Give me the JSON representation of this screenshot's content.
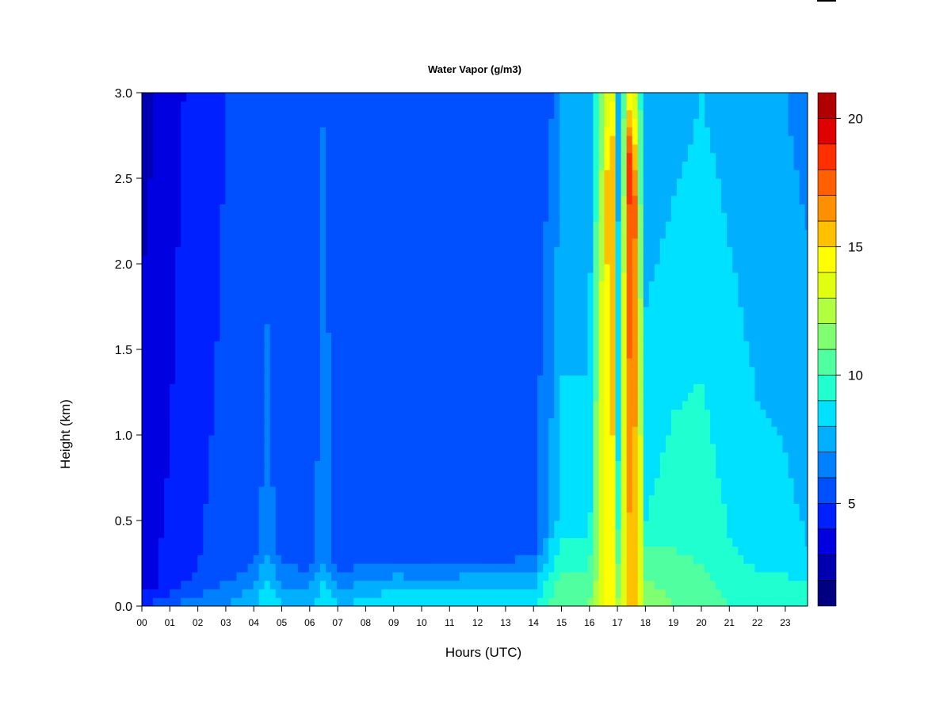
{
  "chart_data": {
    "type": "heatmap",
    "title": "Water Vapor (g/m3)",
    "xlabel": "Hours (UTC)",
    "ylabel": "Height (km)",
    "xlim": [
      0,
      23.9
    ],
    "ylim": [
      0.0,
      3.0
    ],
    "x_ticks": [
      "00",
      "01",
      "02",
      "03",
      "04",
      "05",
      "06",
      "07",
      "08",
      "09",
      "10",
      "11",
      "12",
      "13",
      "14",
      "15",
      "16",
      "17",
      "18",
      "19",
      "20",
      "21",
      "22",
      "23"
    ],
    "y_ticks": [
      "0.0",
      "0.5",
      "1.0",
      "1.5",
      "2.0",
      "2.5",
      "3.0"
    ],
    "colorbar": {
      "range": [
        1,
        21
      ],
      "levels": [
        1,
        2,
        3,
        4,
        5,
        6,
        7,
        8,
        9,
        10,
        11,
        12,
        13,
        14,
        15,
        16,
        17,
        18,
        19,
        20,
        21
      ],
      "colors": [
        "#000080",
        "#0000B0",
        "#0000E0",
        "#0020FF",
        "#0050FF",
        "#0080FF",
        "#00B0FF",
        "#00E0FF",
        "#20FFD0",
        "#50FFA0",
        "#80FF70",
        "#B0FF40",
        "#E0FF10",
        "#FFFF00",
        "#FFC000",
        "#FF9000",
        "#FF6000",
        "#FF3000",
        "#E00000",
        "#B00000",
        "#800000"
      ],
      "ticks": [
        "5",
        "10",
        "15",
        "20"
      ],
      "tick_values": [
        5,
        10,
        15,
        20
      ]
    },
    "surface_profile": {
      "hours": [
        0,
        1,
        2,
        3,
        4,
        4.5,
        5,
        6,
        6.5,
        7,
        8,
        9,
        10,
        12,
        14,
        14.7,
        15,
        16,
        16.8,
        17,
        17.5,
        18,
        19,
        20,
        21,
        22,
        23,
        23.9
      ],
      "surface_value": [
        5,
        6,
        6.5,
        7,
        8,
        9,
        8,
        8,
        9,
        8,
        8.5,
        9,
        9,
        9,
        9,
        10.5,
        11,
        11,
        15,
        12,
        16,
        12,
        11,
        10.5,
        10,
        10,
        10,
        10
      ],
      "top_value": [
        2.5,
        3.5,
        4.5,
        5,
        5,
        5.5,
        5,
        5,
        6,
        5,
        5,
        5,
        5,
        5,
        5,
        6,
        7,
        7,
        15,
        7,
        15,
        7,
        7.5,
        8,
        7.5,
        7,
        7,
        6.5
      ],
      "mid_value": [
        3.8,
        4.2,
        5,
        5.2,
        5.6,
        6.5,
        5.4,
        5.3,
        6.8,
        5.4,
        5.5,
        5.6,
        5.5,
        5.6,
        5.8,
        7.5,
        8.5,
        8.5,
        17,
        8.5,
        20,
        9,
        9.5,
        9.5,
        9,
        8.5,
        8.3,
        8
      ],
      "mixing_height_km": [
        0.1,
        0.15,
        0.2,
        0.25,
        0.3,
        0.4,
        0.3,
        0.3,
        0.3,
        0.25,
        0.3,
        0.3,
        0.3,
        0.3,
        0.3,
        0.5,
        0.5,
        0.5,
        3.0,
        0.5,
        3.0,
        0.5,
        0.5,
        0.5,
        0.4,
        0.3,
        0.3,
        0.3
      ]
    }
  }
}
